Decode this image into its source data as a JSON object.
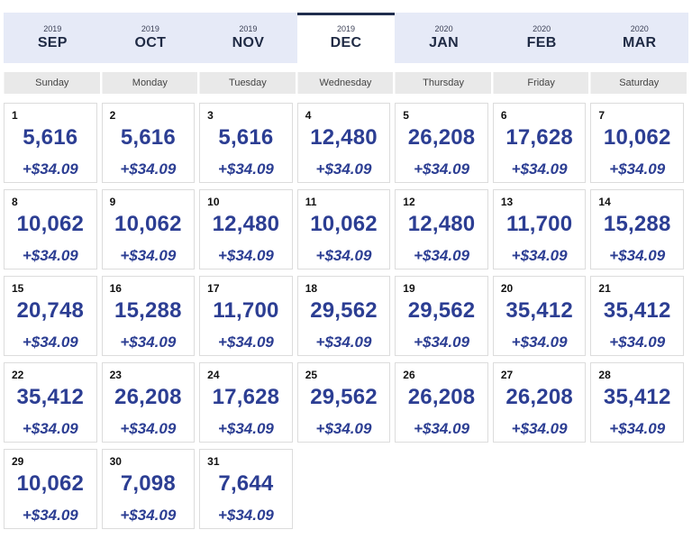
{
  "months": [
    {
      "year": "2019",
      "name": "SEP",
      "active": false
    },
    {
      "year": "2019",
      "name": "OCT",
      "active": false
    },
    {
      "year": "2019",
      "name": "NOV",
      "active": false
    },
    {
      "year": "2019",
      "name": "DEC",
      "active": true
    },
    {
      "year": "2020",
      "name": "JAN",
      "active": false
    },
    {
      "year": "2020",
      "name": "FEB",
      "active": false
    },
    {
      "year": "2020",
      "name": "MAR",
      "active": false
    }
  ],
  "weekdays": [
    "Sunday",
    "Monday",
    "Tuesday",
    "Wednesday",
    "Thursday",
    "Friday",
    "Saturday"
  ],
  "days": [
    {
      "day": "1",
      "points": "5,616",
      "fee": "+$34.09"
    },
    {
      "day": "2",
      "points": "5,616",
      "fee": "+$34.09"
    },
    {
      "day": "3",
      "points": "5,616",
      "fee": "+$34.09"
    },
    {
      "day": "4",
      "points": "12,480",
      "fee": "+$34.09"
    },
    {
      "day": "5",
      "points": "26,208",
      "fee": "+$34.09"
    },
    {
      "day": "6",
      "points": "17,628",
      "fee": "+$34.09"
    },
    {
      "day": "7",
      "points": "10,062",
      "fee": "+$34.09"
    },
    {
      "day": "8",
      "points": "10,062",
      "fee": "+$34.09"
    },
    {
      "day": "9",
      "points": "10,062",
      "fee": "+$34.09"
    },
    {
      "day": "10",
      "points": "12,480",
      "fee": "+$34.09"
    },
    {
      "day": "11",
      "points": "10,062",
      "fee": "+$34.09"
    },
    {
      "day": "12",
      "points": "12,480",
      "fee": "+$34.09"
    },
    {
      "day": "13",
      "points": "11,700",
      "fee": "+$34.09"
    },
    {
      "day": "14",
      "points": "15,288",
      "fee": "+$34.09"
    },
    {
      "day": "15",
      "points": "20,748",
      "fee": "+$34.09"
    },
    {
      "day": "16",
      "points": "15,288",
      "fee": "+$34.09"
    },
    {
      "day": "17",
      "points": "11,700",
      "fee": "+$34.09"
    },
    {
      "day": "18",
      "points": "29,562",
      "fee": "+$34.09"
    },
    {
      "day": "19",
      "points": "29,562",
      "fee": "+$34.09"
    },
    {
      "day": "20",
      "points": "35,412",
      "fee": "+$34.09"
    },
    {
      "day": "21",
      "points": "35,412",
      "fee": "+$34.09"
    },
    {
      "day": "22",
      "points": "35,412",
      "fee": "+$34.09"
    },
    {
      "day": "23",
      "points": "26,208",
      "fee": "+$34.09"
    },
    {
      "day": "24",
      "points": "17,628",
      "fee": "+$34.09"
    },
    {
      "day": "25",
      "points": "29,562",
      "fee": "+$34.09"
    },
    {
      "day": "26",
      "points": "26,208",
      "fee": "+$34.09"
    },
    {
      "day": "27",
      "points": "26,208",
      "fee": "+$34.09"
    },
    {
      "day": "28",
      "points": "35,412",
      "fee": "+$34.09"
    },
    {
      "day": "29",
      "points": "10,062",
      "fee": "+$34.09"
    },
    {
      "day": "30",
      "points": "7,098",
      "fee": "+$34.09"
    },
    {
      "day": "31",
      "points": "7,644",
      "fee": "+$34.09"
    }
  ],
  "colors": {
    "accent": "#2c3e93",
    "tab_bg": "#e6eaf7",
    "active_border": "#1f2d4e"
  }
}
